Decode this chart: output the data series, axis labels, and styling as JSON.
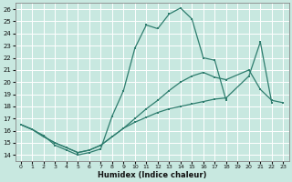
{
  "title": "",
  "xlabel": "Humidex (Indice chaleur)",
  "bg_color": "#c8e8e0",
  "grid_color": "#ffffff",
  "line_color": "#2e7d6e",
  "xlim": [
    -0.5,
    23.5
  ],
  "ylim": [
    13.5,
    26.5
  ],
  "xticks": [
    0,
    1,
    2,
    3,
    4,
    5,
    6,
    7,
    8,
    9,
    10,
    11,
    12,
    13,
    14,
    15,
    16,
    17,
    18,
    19,
    20,
    21,
    22,
    23
  ],
  "yticks": [
    14,
    15,
    16,
    17,
    18,
    19,
    20,
    21,
    22,
    23,
    24,
    25,
    26
  ],
  "series1": [
    [
      0,
      16.5
    ],
    [
      1,
      16.1
    ],
    [
      2,
      15.6
    ],
    [
      3,
      14.8
    ],
    [
      4,
      14.4
    ],
    [
      5,
      14.0
    ],
    [
      6,
      14.2
    ],
    [
      7,
      14.5
    ],
    [
      8,
      17.2
    ],
    [
      9,
      19.3
    ],
    [
      10,
      22.8
    ],
    [
      11,
      24.7
    ],
    [
      12,
      24.4
    ],
    [
      13,
      25.6
    ],
    [
      14,
      26.1
    ],
    [
      15,
      25.2
    ],
    [
      16,
      22.0
    ],
    [
      17,
      21.8
    ],
    [
      18,
      18.5
    ]
  ],
  "series2": [
    [
      0,
      16.5
    ],
    [
      1,
      16.1
    ],
    [
      2,
      15.5
    ],
    [
      3,
      15.0
    ],
    [
      4,
      14.6
    ],
    [
      5,
      14.2
    ],
    [
      6,
      14.4
    ],
    [
      7,
      14.8
    ],
    [
      8,
      15.5
    ],
    [
      9,
      16.2
    ],
    [
      10,
      17.0
    ],
    [
      11,
      17.8
    ],
    [
      12,
      18.5
    ],
    [
      13,
      19.3
    ],
    [
      14,
      20.0
    ],
    [
      15,
      20.5
    ],
    [
      16,
      20.8
    ],
    [
      17,
      20.4
    ],
    [
      18,
      20.2
    ],
    [
      20,
      21.0
    ],
    [
      21,
      19.4
    ],
    [
      22,
      18.5
    ],
    [
      23,
      18.3
    ]
  ],
  "series3": [
    [
      0,
      16.5
    ],
    [
      1,
      16.1
    ],
    [
      2,
      15.5
    ],
    [
      3,
      15.0
    ],
    [
      4,
      14.6
    ],
    [
      5,
      14.2
    ],
    [
      6,
      14.4
    ],
    [
      7,
      14.8
    ],
    [
      8,
      15.5
    ],
    [
      9,
      16.2
    ],
    [
      10,
      16.7
    ],
    [
      11,
      17.1
    ],
    [
      12,
      17.5
    ],
    [
      13,
      17.8
    ],
    [
      14,
      18.0
    ],
    [
      15,
      18.2
    ],
    [
      16,
      18.4
    ],
    [
      17,
      18.6
    ],
    [
      18,
      18.7
    ],
    [
      20,
      20.5
    ],
    [
      21,
      23.3
    ],
    [
      22,
      18.3
    ]
  ]
}
